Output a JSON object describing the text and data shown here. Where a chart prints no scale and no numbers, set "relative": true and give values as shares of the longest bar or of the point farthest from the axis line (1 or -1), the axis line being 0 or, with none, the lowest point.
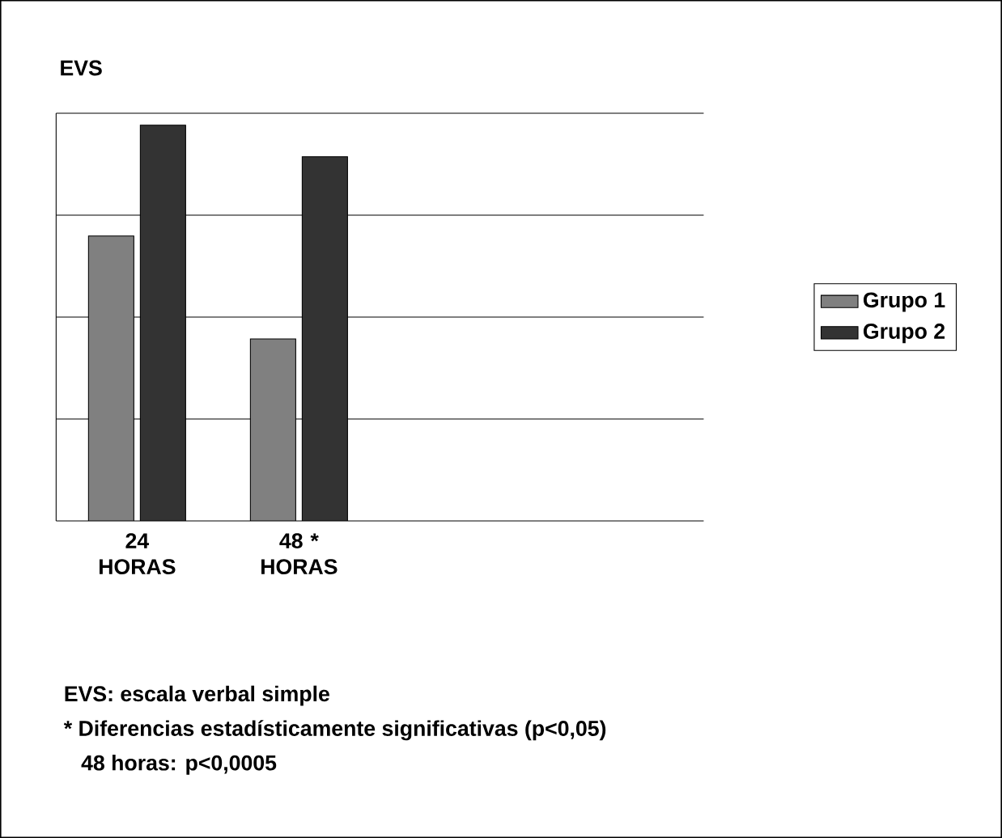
{
  "chart_data": {
    "type": "bar",
    "ylabel": "EVS",
    "categories": [
      "24 HORAS",
      "48 * HORAS",
      null,
      null
    ],
    "series": [
      {
        "name": "Grupo 1",
        "color": "#808080",
        "values": [
          0.72,
          0.46,
          null,
          null
        ]
      },
      {
        "name": "Grupo 2",
        "color": "#333333",
        "values": [
          1,
          0.92,
          null,
          null
        ]
      }
    ],
    "relative": true,
    "grid": "y",
    "legend": "right",
    "annotations": [
      "EVS: escala verbal simple",
      "* Diferencias estadísticamente significativas (p<0,05)",
      "48 horas: p<0,0005"
    ]
  }
}
